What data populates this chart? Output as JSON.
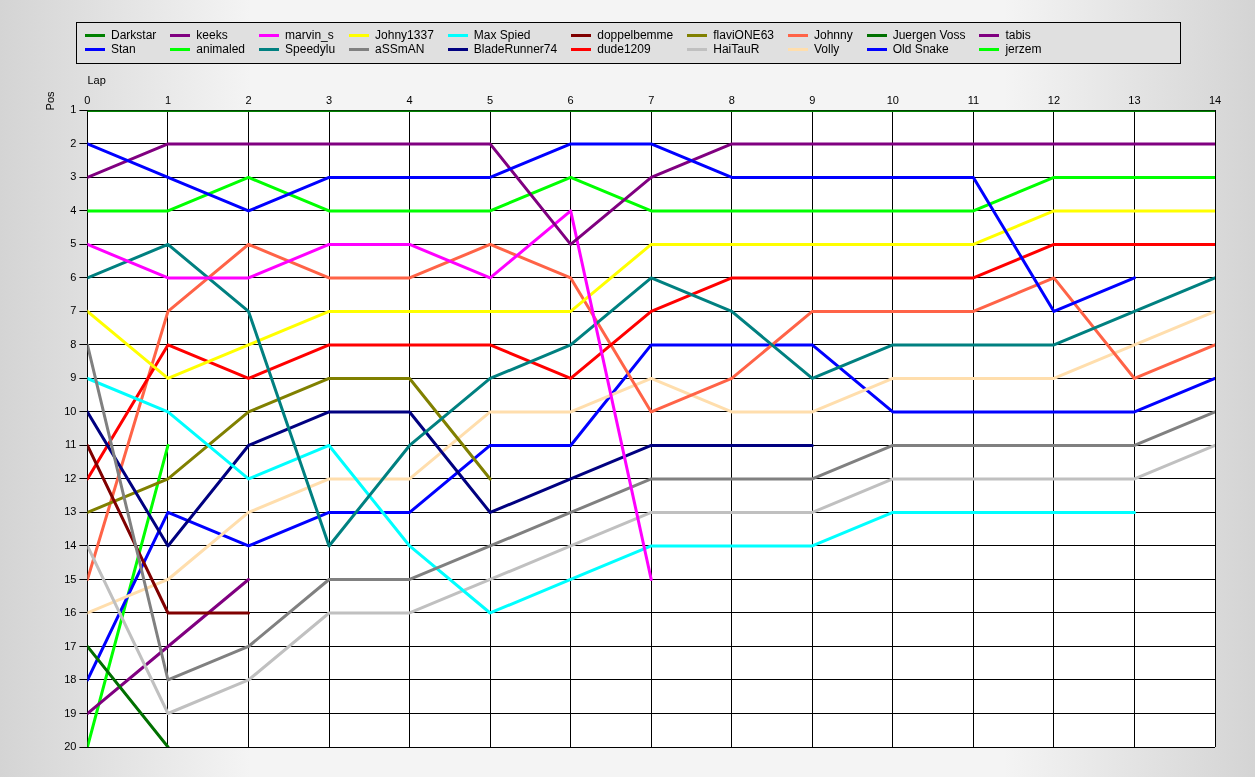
{
  "chart_data": {
    "type": "line",
    "xlabel": "Lap",
    "ylabel": "Pos",
    "x": [
      0,
      1,
      2,
      3,
      4,
      5,
      6,
      7,
      8,
      9,
      10,
      11,
      12,
      13,
      14
    ],
    "xlim": [
      0,
      14
    ],
    "xticks": [
      0,
      1,
      2,
      3,
      4,
      5,
      6,
      7,
      8,
      9,
      10,
      11,
      12,
      13,
      14
    ],
    "ylim": [
      20,
      1
    ],
    "yticks": [
      1,
      2,
      3,
      4,
      5,
      6,
      7,
      8,
      9,
      10,
      11,
      12,
      13,
      14,
      15,
      16,
      17,
      18,
      19,
      20
    ],
    "grid": true,
    "legend": "top",
    "marker": "none",
    "line_style": "solid",
    "series": [
      {
        "name": "Darkstar",
        "color": "#008000",
        "values": [
          1,
          1,
          1,
          1,
          1,
          1,
          1,
          1,
          1,
          1,
          1,
          1,
          1,
          1,
          1
        ]
      },
      {
        "name": "Stan",
        "color": "#0000ff",
        "values": [
          2,
          3,
          4,
          3,
          3,
          3,
          2,
          2,
          3,
          3,
          3,
          3,
          7,
          6,
          null
        ]
      },
      {
        "name": "keeks",
        "color": "#800080",
        "values": [
          3,
          2,
          2,
          2,
          2,
          2,
          5,
          3,
          2,
          2,
          2,
          2,
          2,
          2,
          2
        ]
      },
      {
        "name": "animaled",
        "color": "#00ff00",
        "values": [
          4,
          4,
          3,
          4,
          4,
          4,
          3,
          4,
          4,
          4,
          4,
          4,
          3,
          3,
          3
        ]
      },
      {
        "name": "marvin_s",
        "color": "#ff00ff",
        "values": [
          5,
          6,
          6,
          5,
          5,
          6,
          4,
          15,
          null,
          null,
          null,
          null,
          null,
          null,
          null
        ]
      },
      {
        "name": "Speedylu",
        "color": "#008080",
        "values": [
          6,
          5,
          7,
          14,
          11,
          9,
          8,
          6,
          7,
          9,
          8,
          8,
          8,
          7,
          6
        ]
      },
      {
        "name": "Johny1337",
        "color": "#ffff00",
        "values": [
          7,
          9,
          8,
          7,
          7,
          7,
          7,
          5,
          5,
          5,
          5,
          5,
          4,
          4,
          4
        ]
      },
      {
        "name": "aSSmAN",
        "color": "#808080",
        "values": [
          8,
          18,
          17,
          15,
          15,
          14,
          13,
          12,
          12,
          12,
          11,
          11,
          11,
          11,
          10
        ]
      },
      {
        "name": "Max Spied",
        "color": "#00ffff",
        "values": [
          9,
          10,
          12,
          11,
          14,
          16,
          15,
          14,
          14,
          14,
          13,
          13,
          13,
          13,
          null
        ]
      },
      {
        "name": "BladeRunner74",
        "color": "#000080",
        "values": [
          10,
          14,
          11,
          10,
          10,
          13,
          12,
          11,
          11,
          11,
          null,
          null,
          null,
          null,
          null
        ]
      },
      {
        "name": "doppelbemme",
        "color": "#800000",
        "values": [
          11,
          16,
          16,
          null,
          null,
          null,
          null,
          null,
          null,
          null,
          null,
          null,
          null,
          null,
          null
        ]
      },
      {
        "name": "dude1209",
        "color": "#ff0000",
        "values": [
          12,
          8,
          9,
          8,
          8,
          8,
          9,
          7,
          6,
          6,
          6,
          6,
          5,
          5,
          5
        ]
      },
      {
        "name": "flaviONE63",
        "color": "#808000",
        "values": [
          13,
          12,
          10,
          9,
          9,
          12,
          null,
          null,
          null,
          null,
          null,
          null,
          null,
          null,
          null
        ]
      },
      {
        "name": "HaiTauR",
        "color": "#c0c0c0",
        "values": [
          14,
          19,
          18,
          16,
          16,
          15,
          14,
          13,
          13,
          13,
          12,
          12,
          12,
          12,
          11
        ]
      },
      {
        "name": "Johnny",
        "color": "#ff6347",
        "values": [
          15,
          7,
          5,
          6,
          6,
          5,
          6,
          10,
          9,
          7,
          7,
          7,
          6,
          9,
          8
        ]
      },
      {
        "name": "Volly",
        "color": "#ffdead",
        "values": [
          16,
          15,
          13,
          12,
          12,
          10,
          10,
          9,
          10,
          10,
          9,
          9,
          9,
          8,
          7
        ]
      },
      {
        "name": "Juergen Voss",
        "color": "#007000",
        "values": [
          17,
          20,
          null,
          null,
          null,
          null,
          null,
          null,
          null,
          null,
          null,
          null,
          null,
          null,
          null
        ]
      },
      {
        "name": "Old Snake",
        "color": "#0000ff",
        "values": [
          18,
          13,
          14,
          13,
          13,
          11,
          11,
          8,
          8,
          8,
          10,
          10,
          10,
          10,
          9
        ]
      },
      {
        "name": "tabis",
        "color": "#800080",
        "values": [
          19,
          17,
          15,
          null,
          null,
          null,
          null,
          null,
          null,
          null,
          null,
          null,
          null,
          null,
          null
        ]
      },
      {
        "name": "jerzem",
        "color": "#00ff00",
        "values": [
          20,
          11,
          null,
          null,
          null,
          null,
          null,
          null,
          null,
          null,
          null,
          null,
          null,
          null,
          null
        ]
      }
    ]
  }
}
